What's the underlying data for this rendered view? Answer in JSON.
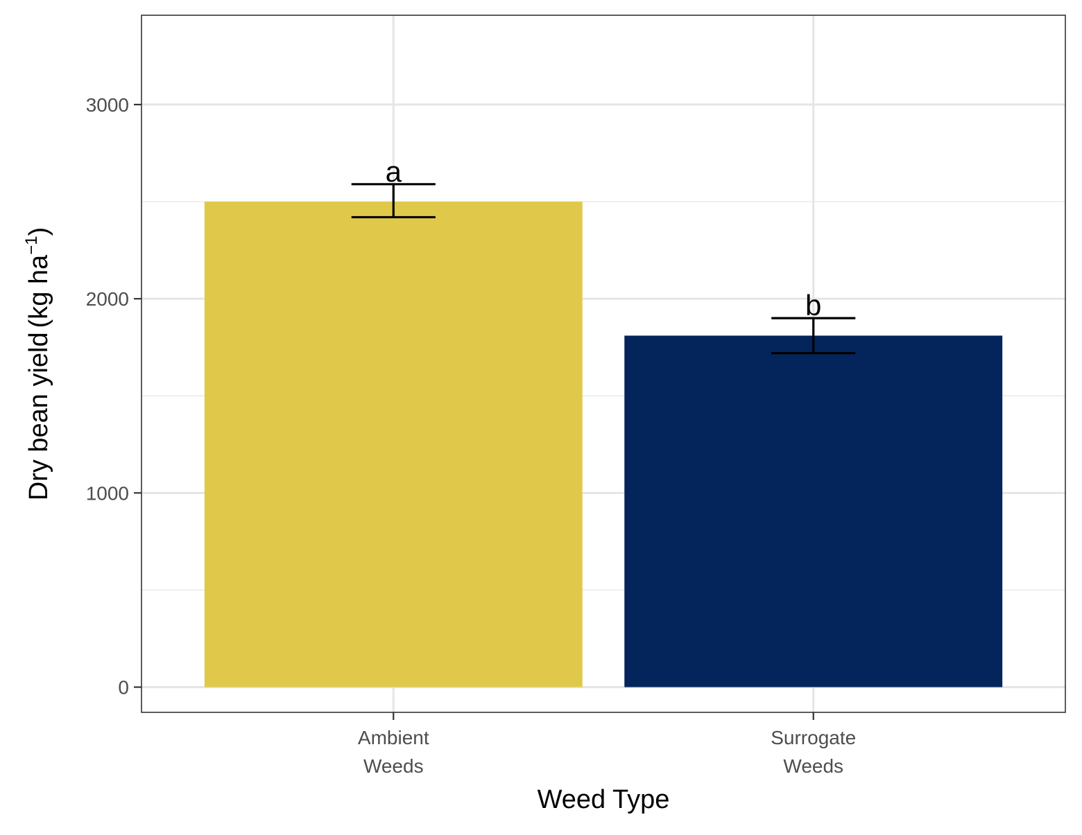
{
  "chart_data": {
    "type": "bar",
    "categories": [
      {
        "line1": "Ambient",
        "line2": "Weeds"
      },
      {
        "line1": "Surrogate",
        "line2": "Weeds"
      }
    ],
    "values": [
      2500,
      1810
    ],
    "error_bars": [
      {
        "low": 2420,
        "high": 2590
      },
      {
        "low": 1720,
        "high": 1900
      }
    ],
    "significance_letters": [
      "a",
      "b"
    ],
    "bar_colors": [
      "#E0C94A",
      "#04245C"
    ],
    "xlabel": "Weed Type",
    "ylabel": {
      "text": "Dry bean yield",
      "unit_open": "(",
      "unit": "kg ha",
      "superscript": "−1",
      "unit_close": ")"
    },
    "ylim": [
      -130,
      3460
    ],
    "yticks": [
      0,
      1000,
      2000,
      3000
    ],
    "y_minor_ticks": [
      500,
      1500,
      2500
    ],
    "grid": true,
    "legend": "none"
  }
}
